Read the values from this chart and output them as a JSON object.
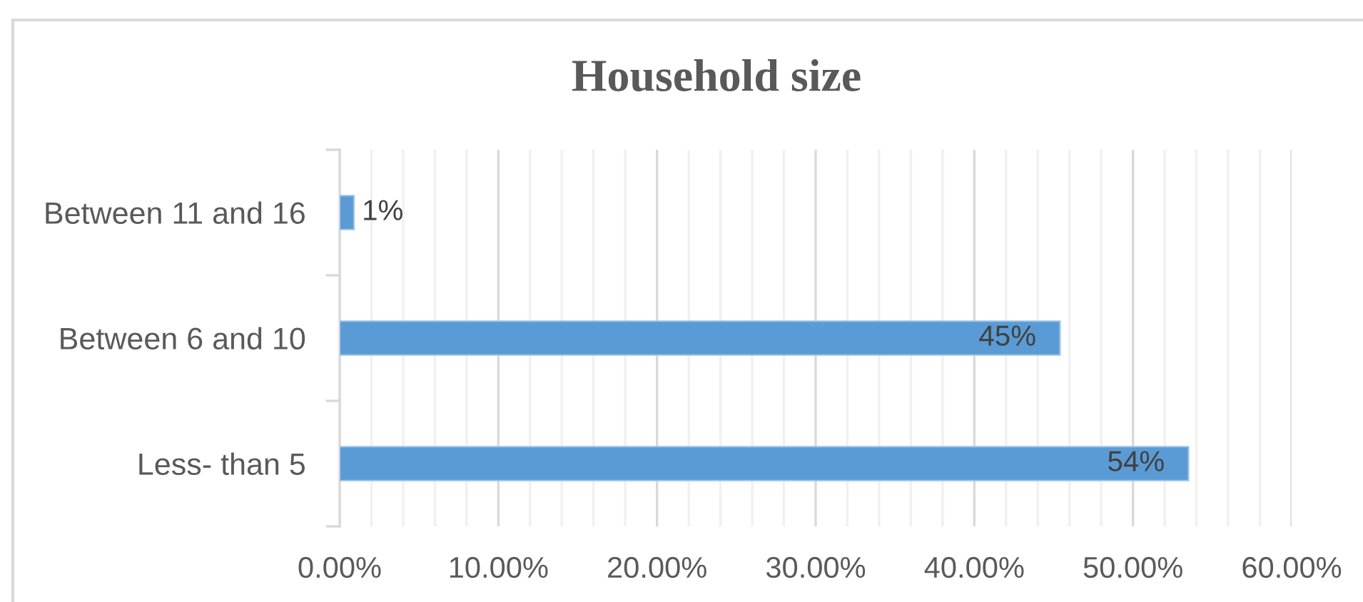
{
  "chart_data": {
    "type": "bar",
    "orientation": "horizontal",
    "title": "Household size",
    "categories": [
      "Between 11 and 16",
      "Between 6 and 10",
      "Less- than 5"
    ],
    "values": [
      0.9,
      45.4,
      53.5
    ],
    "color": "#5b9bd5",
    "value_labels": [
      "1%",
      "45%",
      "54%"
    ],
    "xlim": [
      0,
      60
    ],
    "xticks": [
      {
        "value": 0,
        "label": "0.00%"
      },
      {
        "value": 2,
        "label": null
      },
      {
        "value": 4,
        "label": null
      },
      {
        "value": 6,
        "label": null
      },
      {
        "value": 8,
        "label": null
      },
      {
        "value": 10,
        "label": "10.00%"
      },
      {
        "value": 12,
        "label": null
      },
      {
        "value": 14,
        "label": null
      },
      {
        "value": 16,
        "label": null
      },
      {
        "value": 18,
        "label": null
      },
      {
        "value": 20,
        "label": "20.00%"
      },
      {
        "value": 22,
        "label": null
      },
      {
        "value": 24,
        "label": null
      },
      {
        "value": 26,
        "label": null
      },
      {
        "value": 28,
        "label": null
      },
      {
        "value": 30,
        "label": "30.00%"
      },
      {
        "value": 32,
        "label": null
      },
      {
        "value": 34,
        "label": null
      },
      {
        "value": 36,
        "label": null
      },
      {
        "value": 38,
        "label": null
      },
      {
        "value": 40,
        "label": "40.00%"
      },
      {
        "value": 42,
        "label": null
      },
      {
        "value": 44,
        "label": null
      },
      {
        "value": 46,
        "label": null
      },
      {
        "value": 48,
        "label": null
      },
      {
        "value": 50,
        "label": "50.00%"
      },
      {
        "value": 52,
        "label": null
      },
      {
        "value": 54,
        "label": null
      },
      {
        "value": 56,
        "label": null
      },
      {
        "value": 58,
        "label": null
      },
      {
        "value": 60,
        "label": "60.00%"
      }
    ],
    "grid": "x"
  }
}
